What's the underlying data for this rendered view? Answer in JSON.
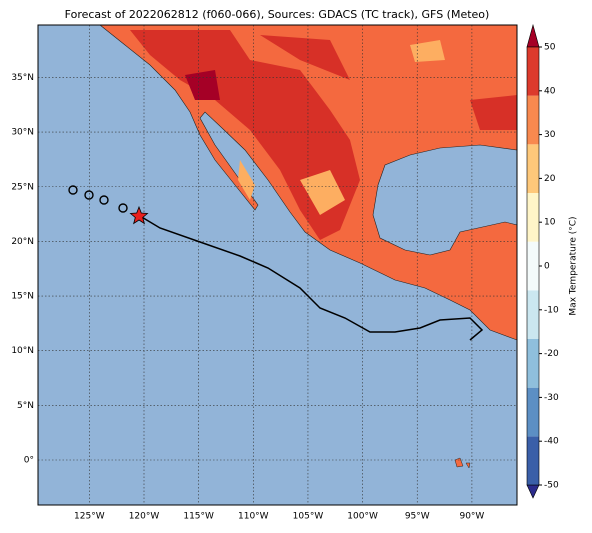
{
  "map": {
    "title": "Forecast of 2022062812 (f060-066), Sources: GDACS (TC track), GFS (Meteo)",
    "lon_ticks": [
      {
        "value": -125,
        "label": "125°W"
      },
      {
        "value": -120,
        "label": "120°W"
      },
      {
        "value": -115,
        "label": "115°W"
      },
      {
        "value": -110,
        "label": "110°W"
      },
      {
        "value": -105,
        "label": "105°W"
      },
      {
        "value": -100,
        "label": "100°W"
      },
      {
        "value": -95,
        "label": "95°W"
      },
      {
        "value": -90,
        "label": "90°W"
      }
    ],
    "lat_ticks": [
      {
        "value": 35,
        "label": "35°N"
      },
      {
        "value": 30,
        "label": "30°N"
      },
      {
        "value": 25,
        "label": "25°N"
      },
      {
        "value": 20,
        "label": "20°N"
      },
      {
        "value": 15,
        "label": "15°N"
      },
      {
        "value": 10,
        "label": "10°N"
      },
      {
        "value": 5,
        "label": "5°N"
      },
      {
        "value": 0,
        "label": "0°"
      }
    ],
    "colorbar": {
      "label": "Max Temperature (°C)",
      "ticks": [
        50,
        40,
        30,
        20,
        10,
        0,
        -10,
        -20,
        -30,
        -40,
        -50
      ],
      "colors": [
        "#2b2b8c",
        "#3a5fa8",
        "#5c8fc4",
        "#8fbfdc",
        "#cbe7f0",
        "#f4fbfb",
        "#fff5c8",
        "#fec87a",
        "#f8894f",
        "#dc3a2c",
        "#a50026"
      ]
    }
  }
}
